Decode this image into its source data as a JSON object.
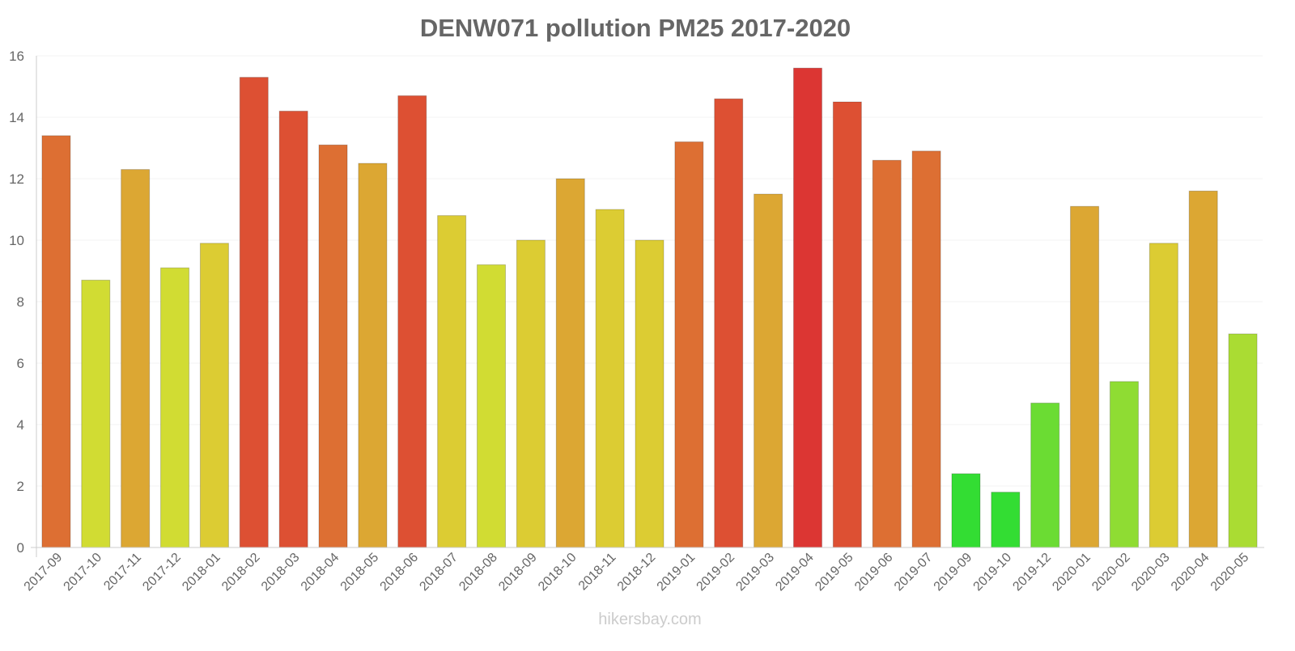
{
  "chart_data": {
    "type": "bar",
    "title": "DENW071 pollution PM25 2017-2020",
    "xlabel": "",
    "ylabel": "",
    "ylim": [
      0,
      16
    ],
    "yticks": [
      0,
      2,
      4,
      6,
      8,
      10,
      12,
      14,
      16
    ],
    "grid": true,
    "categories": [
      "2017-09",
      "2017-10",
      "2017-11",
      "2017-12",
      "2018-01",
      "2018-02",
      "2018-03",
      "2018-04",
      "2018-05",
      "2018-06",
      "2018-07",
      "2018-08",
      "2018-09",
      "2018-10",
      "2018-11",
      "2018-12",
      "2019-01",
      "2019-02",
      "2019-03",
      "2019-04",
      "2019-05",
      "2019-06",
      "2019-07",
      "2019-09",
      "2019-10",
      "2019-12",
      "2020-01",
      "2020-02",
      "2020-03",
      "2020-04",
      "2020-05"
    ],
    "values": [
      13.4,
      8.7,
      12.3,
      9.1,
      9.9,
      15.3,
      14.2,
      13.1,
      12.5,
      14.7,
      10.8,
      9.2,
      10,
      12,
      11,
      10,
      13.2,
      14.6,
      11.5,
      15.6,
      14.5,
      12.6,
      12.9,
      2.4,
      1.8,
      4.7,
      11.1,
      5.4,
      9.9,
      11.6,
      6.95
    ],
    "colors": [
      "#dd6f33",
      "#d1dc33",
      "#dca733",
      "#d1dc33",
      "#dccc33",
      "#dd5033",
      "#dd5033",
      "#dd6f33",
      "#dca733",
      "#dd5033",
      "#dccc33",
      "#d1dc33",
      "#dccc33",
      "#dca733",
      "#dccc33",
      "#dccc33",
      "#dd6f33",
      "#dd5033",
      "#dca733",
      "#dc3633",
      "#dd5033",
      "#dd6f33",
      "#dd6f33",
      "#33dd33",
      "#33dd33",
      "#6bdc33",
      "#dca733",
      "#8fdc33",
      "#dccc33",
      "#dca733",
      "#aadc33"
    ]
  },
  "footer": {
    "watermark": "hikersbay.com"
  }
}
